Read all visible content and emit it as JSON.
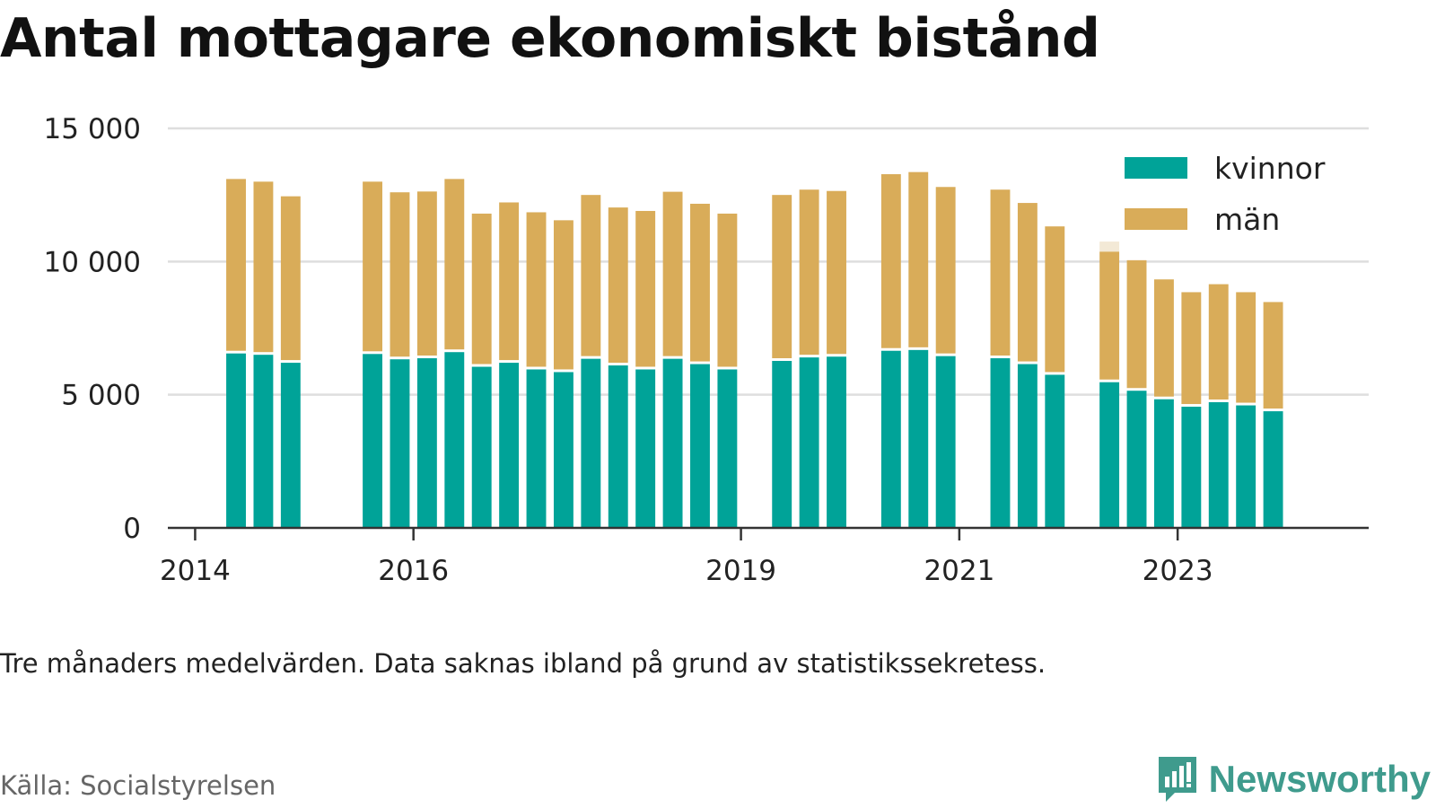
{
  "title": "Antal mottagare ekonomiskt bistånd",
  "note": "Tre månaders medelvärden. Data saknas ibland på grund av statistikssekretess.",
  "source": "Källa: Socialstyrelsen",
  "brand": "Newsworthy",
  "colors": {
    "kvinnor": "#00a398",
    "man": "#d9ac59",
    "grid": "#dedede",
    "axis": "#333333",
    "preliminary": "#f3e9d6"
  },
  "chart_data": {
    "type": "bar",
    "stacked": true,
    "x_unit": "quarter",
    "xlim": [
      "2013-Q4",
      "2024-Q4"
    ],
    "ylim": [
      0,
      15000
    ],
    "yticks": [
      0,
      5000,
      10000,
      15000
    ],
    "ytick_labels": [
      "0",
      "5 000",
      "10 000",
      "15 000"
    ],
    "xticks": [
      "2014-Q1",
      "2016-Q1",
      "2019-Q1",
      "2021-Q1",
      "2023-Q1"
    ],
    "xtick_labels": [
      "2014",
      "2016",
      "2019",
      "2021",
      "2023"
    ],
    "grid": true,
    "legend_position": "top-right",
    "categories": [
      "2014-Q2",
      "2014-Q3",
      "2014-Q4",
      "2015-Q3",
      "2015-Q4",
      "2016-Q1",
      "2016-Q2",
      "2016-Q3",
      "2016-Q4",
      "2017-Q1",
      "2017-Q2",
      "2017-Q3",
      "2017-Q4",
      "2018-Q1",
      "2018-Q2",
      "2018-Q3",
      "2018-Q4",
      "2019-Q2",
      "2019-Q3",
      "2019-Q4",
      "2020-Q2",
      "2020-Q3",
      "2020-Q4",
      "2021-Q2",
      "2021-Q3",
      "2021-Q4",
      "2022-Q2",
      "2022-Q3",
      "2022-Q4",
      "2023-Q1",
      "2023-Q2",
      "2023-Q3",
      "2023-Q4"
    ],
    "series": [
      {
        "name": "kvinnor",
        "values": [
          6600,
          6550,
          6250,
          6580,
          6380,
          6420,
          6650,
          6100,
          6250,
          6000,
          5900,
          6400,
          6150,
          6000,
          6400,
          6200,
          6000,
          6320,
          6450,
          6480,
          6700,
          6730,
          6500,
          6420,
          6200,
          5800,
          5520,
          5200,
          4880,
          4600,
          4770,
          4650,
          4430
        ]
      },
      {
        "name": "män",
        "values": [
          6500,
          6450,
          6200,
          6420,
          6220,
          6210,
          6450,
          5700,
          5970,
          5850,
          5650,
          6100,
          5880,
          5900,
          6220,
          5970,
          5800,
          6180,
          6250,
          6170,
          6580,
          6630,
          6300,
          6280,
          6000,
          5520,
          4850,
          4850,
          4450,
          4250,
          4380,
          4200,
          4050
        ]
      }
    ],
    "preliminary_top": {
      "category": "2022-Q2",
      "value": 10750
    }
  },
  "legend": [
    {
      "key": "kvinnor",
      "label": "kvinnor"
    },
    {
      "key": "man",
      "label": "män"
    }
  ]
}
